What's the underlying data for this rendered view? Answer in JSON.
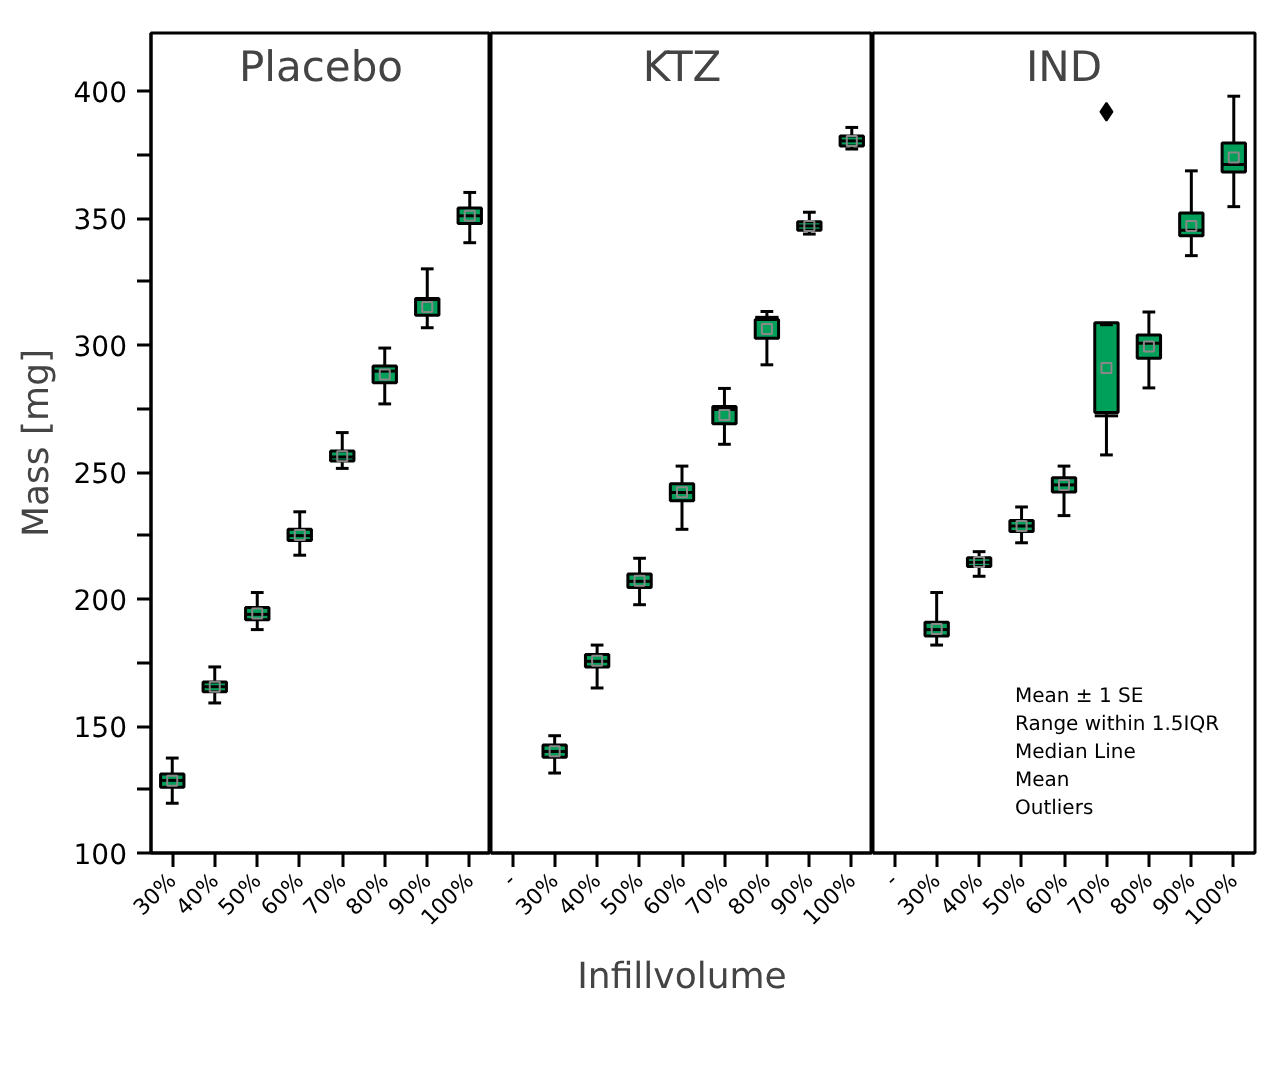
{
  "chart_data": [
    {
      "type": "box",
      "title": "Placebo",
      "ylabel": "Mass [mg]",
      "color": "#00a05a",
      "categories": [
        "30%",
        "40%",
        "50%",
        "60%",
        "70%",
        "80%",
        "90%",
        "100%"
      ],
      "ylim": [
        100,
        423
      ],
      "yticks": [
        100,
        {
          "value": 125,
          "label": null
        },
        150,
        {
          "value": 175,
          "label": null
        },
        200,
        {
          "value": 225,
          "label": null
        },
        250,
        {
          "value": 275,
          "label": null
        },
        300,
        {
          "value": 325,
          "label": null
        },
        350,
        {
          "value": 375,
          "label": null
        },
        400
      ],
      "boxes": [
        {
          "low": 119.6,
          "q1": 125.9,
          "median": 128.6,
          "q3": 131.1,
          "high": 137.4,
          "mean": 128.5
        },
        {
          "low": 159.1,
          "q1": 163.5,
          "median": 165.5,
          "q3": 167.4,
          "high": 173.3,
          "mean": 165.5
        },
        {
          "low": 188.0,
          "q1": 191.9,
          "median": 194.0,
          "q3": 196.7,
          "high": 202.6,
          "mean": 194.3
        },
        {
          "low": 217.3,
          "q1": 223.1,
          "median": 225.0,
          "q3": 227.5,
          "high": 234.4,
          "mean": 225.3
        },
        {
          "low": 251.5,
          "q1": 254.4,
          "median": 256.0,
          "q3": 258.3,
          "high": 265.6,
          "mean": 256.3
        },
        {
          "low": 276.9,
          "q1": 285.2,
          "median": 289.8,
          "q3": 291.8,
          "high": 298.9,
          "mean": 288.5
        },
        {
          "low": 306.9,
          "q1": 311.8,
          "median": 318.0,
          "q3": 318.4,
          "high": 330.1,
          "mean": 315.1
        },
        {
          "low": 340.4,
          "q1": 348.0,
          "median": 351.0,
          "q3": 354.1,
          "high": 360.2,
          "mean": 351.0
        }
      ]
    },
    {
      "type": "box",
      "title": "KTZ",
      "xlabel": "Infillvolume",
      "color": "#00a05a",
      "categories": [
        "-",
        "30%",
        "40%",
        "50%",
        "60%",
        "70%",
        "80%",
        "90%",
        "100%"
      ],
      "ylim": [
        100,
        423
      ],
      "tick_labels": "x",
      "boxes": [
        null,
        {
          "low": 131.5,
          "q1": 137.7,
          "median": 140.0,
          "q3": 142.5,
          "high": 146.2,
          "mean": 140.1
        },
        {
          "low": 165.0,
          "q1": 173.3,
          "median": 175.5,
          "q3": 178.2,
          "high": 181.9,
          "mean": 175.7
        },
        {
          "low": 197.8,
          "q1": 204.6,
          "median": 207.0,
          "q3": 209.9,
          "high": 216.1,
          "mean": 207.2
        },
        {
          "low": 227.5,
          "q1": 238.8,
          "median": 242.0,
          "q3": 245.4,
          "high": 252.4,
          "mean": 242.1
        },
        {
          "low": 261.0,
          "q1": 269.1,
          "median": 274.7,
          "q3": 275.9,
          "high": 283.0,
          "mean": 272.5
        },
        {
          "low": 292.3,
          "q1": 302.8,
          "median": 311.0,
          "q3": 310.1,
          "high": 313.3,
          "mean": 306.4
        },
        {
          "low": 343.8,
          "q1": 345.3,
          "median": 347.0,
          "q3": 348.7,
          "high": 352.4,
          "mean": 347.0
        },
        {
          "low": 377.3,
          "q1": 378.5,
          "median": 380.5,
          "q3": 382.4,
          "high": 385.8,
          "mean": 380.5
        }
      ]
    },
    {
      "type": "box",
      "title": "IND",
      "color": "#00a05a",
      "categories": [
        "-",
        "30%",
        "40%",
        "50%",
        "60%",
        "70%",
        "80%",
        "90%",
        "100%"
      ],
      "ylim": [
        100,
        423
      ],
      "tick_labels": "x",
      "annotations": [
        "Mean ± 1 SE",
        "Range within 1.5IQR",
        "Median Line",
        "Mean",
        "Outliers"
      ],
      "boxes": [
        null,
        {
          "low": 181.9,
          "q1": 185.5,
          "median": 188.0,
          "q3": 190.9,
          "high": 202.6,
          "mean": 188.2
        },
        {
          "low": 209.0,
          "q1": 212.9,
          "median": 214.5,
          "q3": 216.3,
          "high": 218.7,
          "mean": 214.6
        },
        {
          "low": 222.2,
          "q1": 226.6,
          "median": 228.8,
          "q3": 231.0,
          "high": 236.3,
          "mean": 228.8
        },
        {
          "low": 232.9,
          "q1": 242.2,
          "median": 245.0,
          "q3": 247.8,
          "high": 252.4,
          "mean": 245.0
        },
        {
          "low": 256.8,
          "q1": 273.5,
          "median": 272.2,
          "q3": 308.9,
          "high": 308.1,
          "mean": 291.0,
          "outliers": [
            392.0
          ]
        },
        {
          "low": 283.2,
          "q1": 294.9,
          "median": 300.8,
          "q3": 304.0,
          "high": 313.1,
          "mean": 299.5
        },
        {
          "low": 335.3,
          "q1": 343.1,
          "median": 345.3,
          "q3": 352.1,
          "high": 368.7,
          "mean": 347.0
        },
        {
          "low": 354.6,
          "q1": 368.2,
          "median": 371.2,
          "q3": 379.7,
          "high": 398.1,
          "mean": 374.0
        }
      ]
    }
  ]
}
